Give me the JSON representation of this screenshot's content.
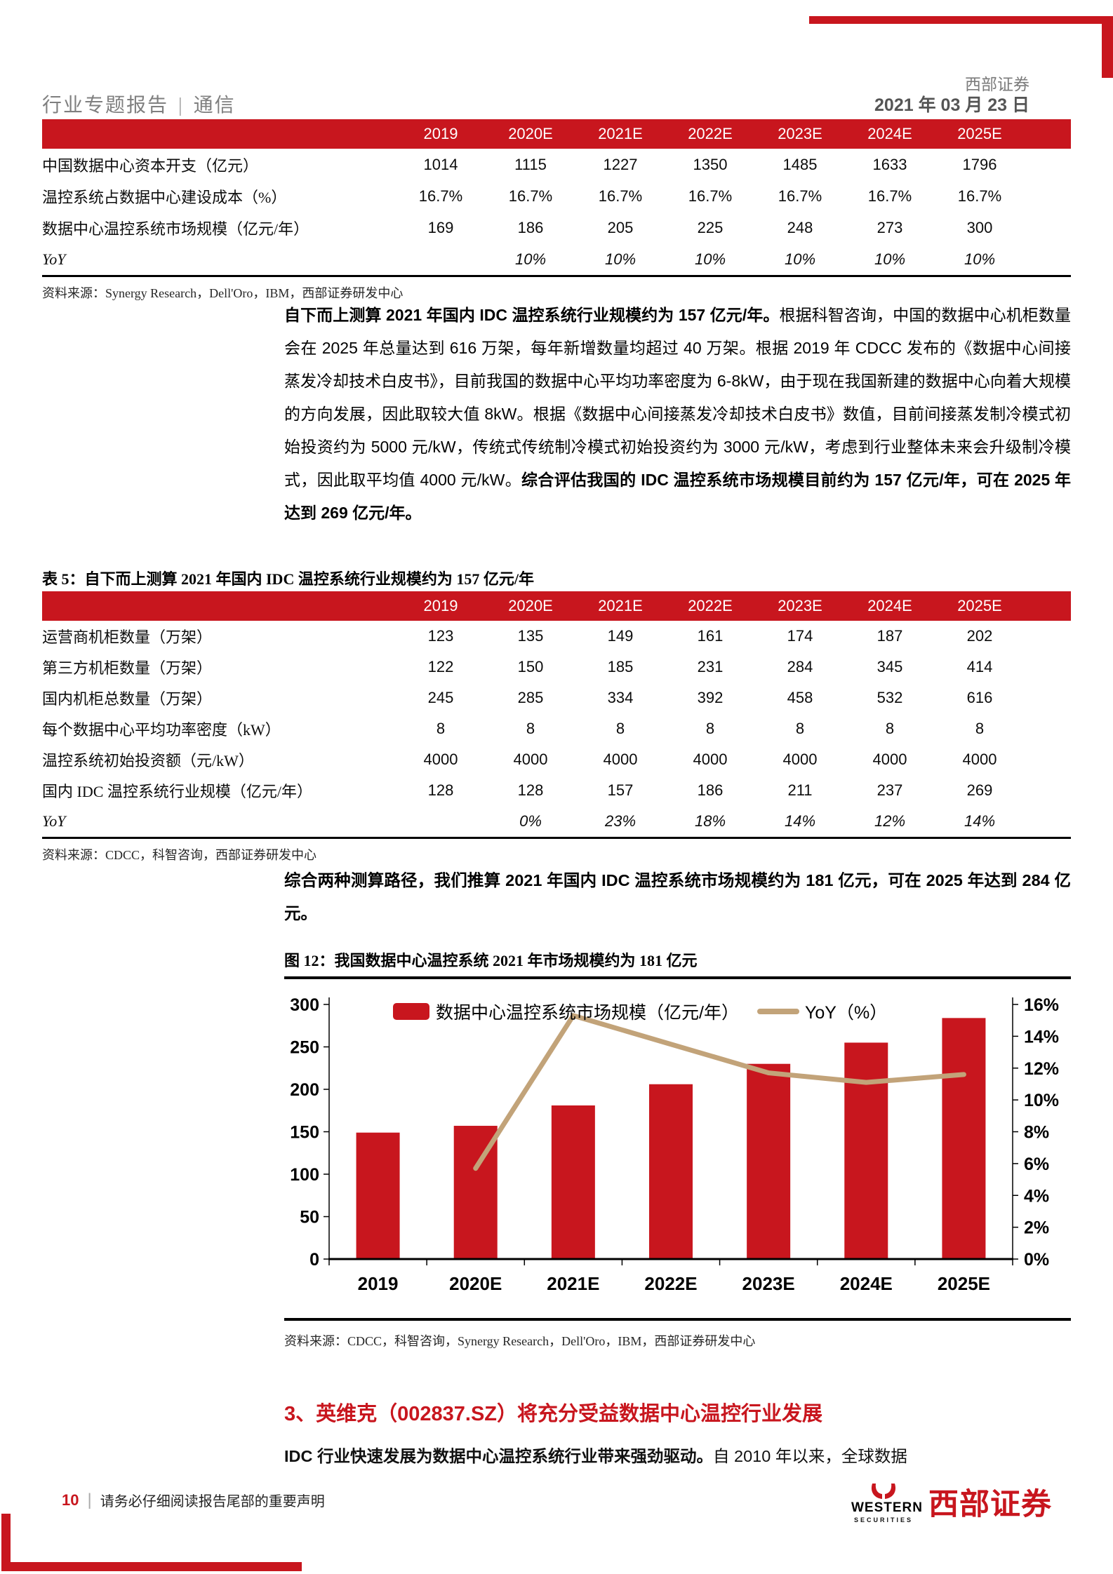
{
  "brand": {
    "name": "西部证券",
    "date": "2021 年 03 月 23 日"
  },
  "header": {
    "report_type": "行业专题报告",
    "divider": "|",
    "sector": "通信"
  },
  "colors": {
    "brand_red": "#C8161E",
    "yoy_line_tan": "#C2A379"
  },
  "table1": {
    "columns": [
      "",
      "2019",
      "2020E",
      "2021E",
      "2022E",
      "2023E",
      "2024E",
      "2025E"
    ],
    "rows": [
      {
        "label": "中国数据中心资本开支（亿元）",
        "values": [
          "1014",
          "1115",
          "1227",
          "1350",
          "1485",
          "1633",
          "1796"
        ],
        "italic": false
      },
      {
        "label": "温控系统占数据中心建设成本（%）",
        "values": [
          "16.7%",
          "16.7%",
          "16.7%",
          "16.7%",
          "16.7%",
          "16.7%",
          "16.7%"
        ],
        "italic": false
      },
      {
        "label": "数据中心温控系统市场规模（亿元/年）",
        "values": [
          "169",
          "186",
          "205",
          "225",
          "248",
          "273",
          "300"
        ],
        "italic": false
      },
      {
        "label": "YoY",
        "values": [
          "",
          "10%",
          "10%",
          "10%",
          "10%",
          "10%",
          "10%"
        ],
        "italic": true
      }
    ],
    "source": "资料来源：Synergy Research，Dell'Oro，IBM，西部证券研发中心"
  },
  "para1": {
    "bold_start": "自下而上测算 2021 年国内 IDC 温控系统行业规模约为 157 亿元/年。",
    "normal_mid": "根据科智咨询，中国的数据中心机柜数量会在 2025 年总量达到 616 万架，每年新增数量均超过 40 万架。根据 2019 年 CDCC 发布的《数据中心间接蒸发冷却技术白皮书》，目前我国的数据中心平均功率密度为 6-8kW，由于现在我国新建的数据中心向着大规模的方向发展，因此取较大值 8kW。根据《数据中心间接蒸发冷却技术白皮书》数值，目前间接蒸发制冷模式初始投资约为 5000 元/kW，传统式传统制冷模式初始投资约为 3000 元/kW，考虑到行业整体未来会升级制冷模式，因此取平均值 4000 元/kW。",
    "bold_end": "综合评估我国的 IDC 温控系统市场规模目前约为 157 亿元/年，可在 2025 年达到 269 亿元/年。"
  },
  "table5": {
    "title": "表 5：自下而上测算 2021 年国内 IDC 温控系统行业规模约为 157 亿元/年",
    "columns": [
      "",
      "2019",
      "2020E",
      "2021E",
      "2022E",
      "2023E",
      "2024E",
      "2025E"
    ],
    "rows": [
      {
        "label": "运营商机柜数量（万架）",
        "values": [
          "123",
          "135",
          "149",
          "161",
          "174",
          "187",
          "202"
        ],
        "italic": false
      },
      {
        "label": "第三方机柜数量（万架）",
        "values": [
          "122",
          "150",
          "185",
          "231",
          "284",
          "345",
          "414"
        ],
        "italic": false
      },
      {
        "label": "国内机柜总数量（万架）",
        "values": [
          "245",
          "285",
          "334",
          "392",
          "458",
          "532",
          "616"
        ],
        "italic": false
      },
      {
        "label": "每个数据中心平均功率密度（kW）",
        "values": [
          "8",
          "8",
          "8",
          "8",
          "8",
          "8",
          "8"
        ],
        "italic": false
      },
      {
        "label": "温控系统初始投资额（元/kW）",
        "values": [
          "4000",
          "4000",
          "4000",
          "4000",
          "4000",
          "4000",
          "4000"
        ],
        "italic": false
      },
      {
        "label": "国内 IDC 温控系统行业规模（亿元/年）",
        "values": [
          "128",
          "128",
          "157",
          "186",
          "211",
          "237",
          "269"
        ],
        "italic": false
      },
      {
        "label": "YoY",
        "values": [
          "",
          "0%",
          "23%",
          "18%",
          "14%",
          "12%",
          "14%"
        ],
        "italic": true
      }
    ],
    "source": "资料来源：CDCC，科智咨询，西部证券研发中心"
  },
  "para2": {
    "text": "综合两种测算路径，我们推算 2021 年国内 IDC 温控系统市场规模约为 181 亿元，可在 2025 年达到 284 亿元。"
  },
  "figure": {
    "title": "图 12：我国数据中心温控系统 2021 年市场规模约为 181 亿元",
    "source": "资料来源：CDCC，科智咨询，Synergy Research，Dell'Oro，IBM，西部证券研发中心"
  },
  "chart_data": {
    "type": "bar",
    "categories": [
      "2019",
      "2020E",
      "2021E",
      "2022E",
      "2023E",
      "2024E",
      "2025E"
    ],
    "series": [
      {
        "name": "数据中心温控系统市场规模（亿元/年）",
        "type": "bar",
        "axis": "left",
        "color": "#C8161E",
        "values": [
          149,
          157,
          181,
          206,
          230,
          255,
          284
        ]
      },
      {
        "name": "YoY（%）",
        "type": "line",
        "axis": "right",
        "color": "#C2A379",
        "values": [
          null,
          5.7,
          15.3,
          13.5,
          11.7,
          11.1,
          11.6
        ]
      }
    ],
    "left_axis": {
      "min": 0,
      "max": 300,
      "step": 50
    },
    "right_axis": {
      "min": 0,
      "max": 16,
      "step": 2,
      "suffix": "%"
    },
    "legend_position": "top",
    "grid": false
  },
  "section3": {
    "heading": "3、英维克（002837.SZ）将充分受益数据中心温控行业发展",
    "lead_bold": "IDC 行业快速发展为数据中心温控系统行业带来强劲驱动。",
    "lead_rest": "自 2010 年以来，全球数据"
  },
  "footer": {
    "page": "10",
    "divider": "|",
    "note": "请务必仔细阅读报告尾部的重要声明",
    "logo_en": "WESTERN",
    "logo_sub": "SECURITIES",
    "logo_cn": "西部证券"
  }
}
